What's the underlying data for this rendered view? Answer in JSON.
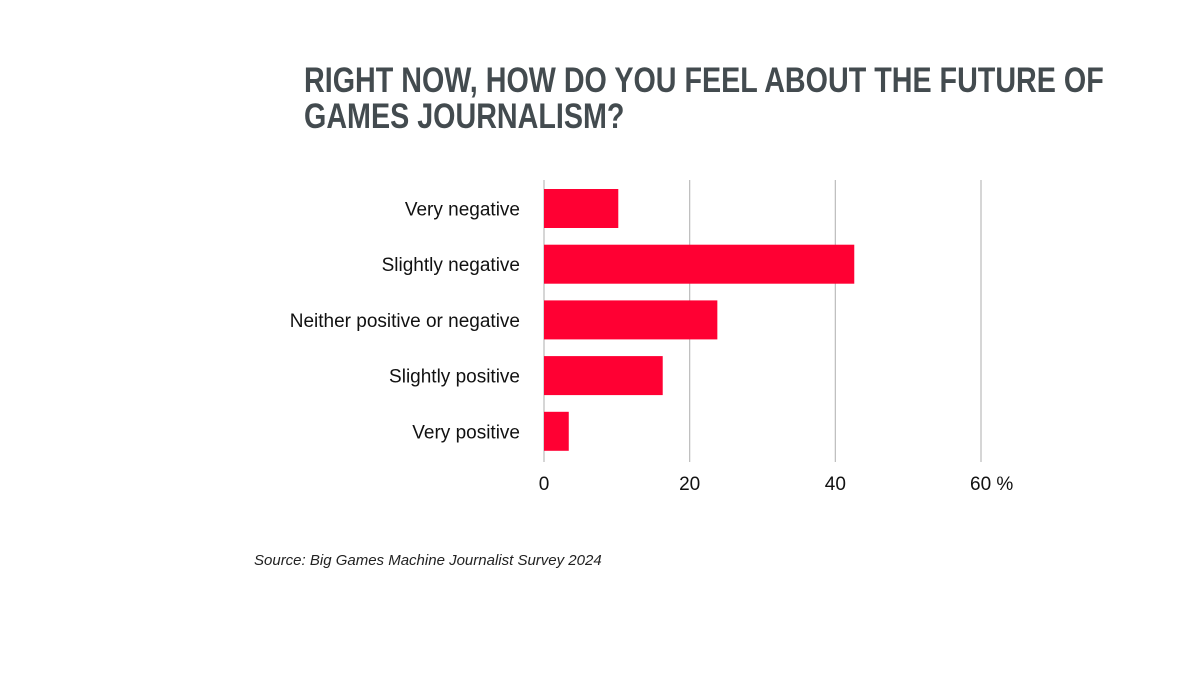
{
  "chart_data": {
    "type": "bar",
    "orientation": "horizontal",
    "title_lines": [
      "RIGHT NOW, HOW DO YOU FEEL ABOUT THE FUTURE OF",
      "GAMES JOURNALISM?"
    ],
    "categories": [
      "Very negative",
      "Slightly negative",
      "Neither positive or negative",
      "Slightly positive",
      "Very positive"
    ],
    "values": [
      10.2,
      42.6,
      23.8,
      16.3,
      3.4
    ],
    "xlim": [
      0,
      60
    ],
    "xticks": [
      0,
      20,
      40,
      60
    ],
    "xtick_labels": [
      "0",
      "20",
      "40",
      "60 %"
    ],
    "grid": "vertical",
    "bar_color": "#ff0033",
    "grid_color": "#bbbbbb",
    "title_color": "#434b4f",
    "source": "Source: Big Games Machine Journalist Survey 2024"
  }
}
